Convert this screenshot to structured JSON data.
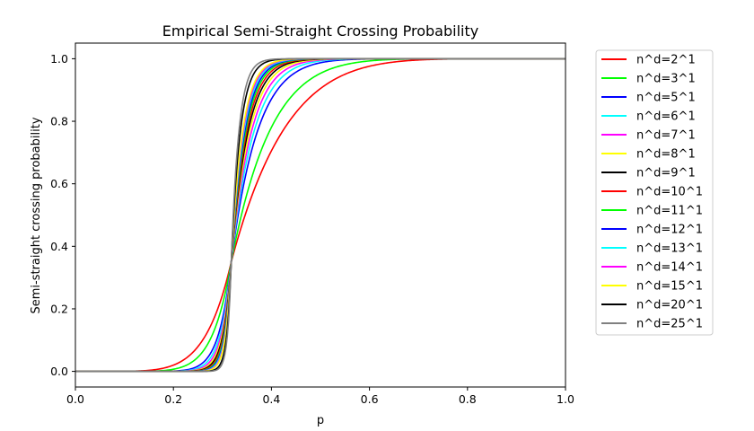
{
  "chart_data": {
    "type": "line",
    "title": "Empirical Semi-Straight Crossing Probability",
    "xlabel": "p",
    "ylabel": "Semi-straight crossing probability",
    "xlim": [
      0.0,
      1.0
    ],
    "ylim": [
      -0.05,
      1.05
    ],
    "xticks": [
      "0.0",
      "0.2",
      "0.4",
      "0.6",
      "0.8",
      "1.0"
    ],
    "yticks": [
      "0.0",
      "0.2",
      "0.4",
      "0.6",
      "0.8",
      "1.0"
    ],
    "grid": false,
    "legend_position": "outside-right",
    "crossing_point": {
      "p": 0.318,
      "prob": 0.35
    },
    "series": [
      {
        "name": "n^d=2^1",
        "color": "#ff0000",
        "n": 2
      },
      {
        "name": "n^d=3^1",
        "color": "#00ff00",
        "n": 3
      },
      {
        "name": "n^d=5^1",
        "color": "#0000ff",
        "n": 5
      },
      {
        "name": "n^d=6^1",
        "color": "#00ffff",
        "n": 6
      },
      {
        "name": "n^d=7^1",
        "color": "#ff00ff",
        "n": 7
      },
      {
        "name": "n^d=8^1",
        "color": "#ffff00",
        "n": 8
      },
      {
        "name": "n^d=9^1",
        "color": "#000000",
        "n": 9
      },
      {
        "name": "n^d=10^1",
        "color": "#ff0000",
        "n": 10
      },
      {
        "name": "n^d=11^1",
        "color": "#00ff00",
        "n": 11
      },
      {
        "name": "n^d=12^1",
        "color": "#0000ff",
        "n": 12
      },
      {
        "name": "n^d=13^1",
        "color": "#00ffff",
        "n": 13
      },
      {
        "name": "n^d=14^1",
        "color": "#ff00ff",
        "n": 14
      },
      {
        "name": "n^d=15^1",
        "color": "#ffff00",
        "n": 15
      },
      {
        "name": "n^d=20^1",
        "color": "#000000",
        "n": 20
      },
      {
        "name": "n^d=25^1",
        "color": "#808080",
        "n": 25
      }
    ]
  }
}
